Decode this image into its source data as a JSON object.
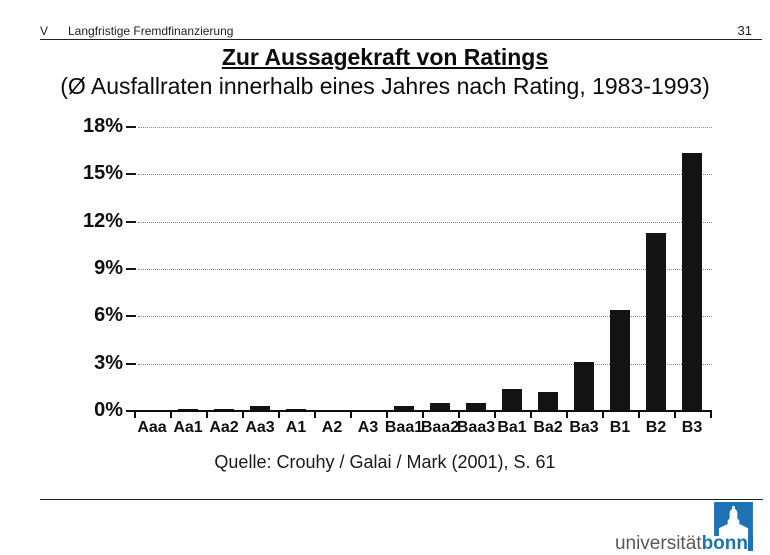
{
  "header": {
    "section": "V",
    "title": "Langfristige Fremdfinanzierung",
    "page_number": "31"
  },
  "slide": {
    "title": "Zur Aussagekraft von Ratings",
    "subtitle": "(Ø Ausfallraten innerhalb eines Jahres nach Rating, 1983-1993)",
    "source": "Quelle: Crouhy / Galai / Mark (2001), S. 61"
  },
  "chart_data": {
    "type": "bar",
    "title": "Zur Aussagekraft von Ratings",
    "subtitle": "(Ø Ausfallraten innerhalb eines Jahres nach Rating, 1983-1993)",
    "categories": [
      "Aaa",
      "Aa1",
      "Aa2",
      "Aa3",
      "A1",
      "A2",
      "A3",
      "Baa1",
      "Baa2",
      "Baa3",
      "Ba1",
      "Ba2",
      "Ba3",
      "B1",
      "B2",
      "B3"
    ],
    "values": [
      0.0,
      0.02,
      0.02,
      0.26,
      0.01,
      0.0,
      0.0,
      0.25,
      0.45,
      0.45,
      1.35,
      1.15,
      3.05,
      6.35,
      11.25,
      16.3
    ],
    "unit": "%",
    "xlabel": "",
    "ylabel": "",
    "ylim": [
      0,
      18
    ],
    "ytick_step": 3,
    "ytick_labels": [
      "0%",
      "3%",
      "6%",
      "9%",
      "12%",
      "15%",
      "18%"
    ],
    "grid": "horizontal-dotted",
    "legend": "none",
    "bar_color": "#131313"
  },
  "logo": {
    "text_gray": "universität",
    "text_blue": "bonn",
    "icon": "bonn-castle-icon",
    "blue": "#1e73b5",
    "gray": "#58585a"
  },
  "colors": {
    "background": "#ffffff",
    "ink": "#111111",
    "grid": "#8a8a8a",
    "accent_blue": "#1e73b5"
  }
}
